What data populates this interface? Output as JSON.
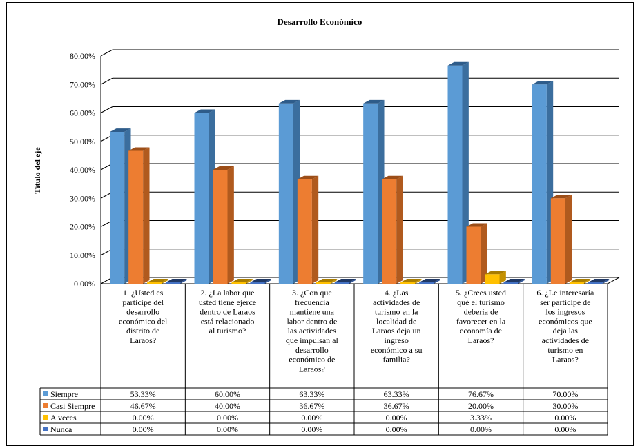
{
  "chart_data": {
    "type": "bar",
    "title": "Desarrollo Económico",
    "ylabel": "Título del eje",
    "ylim": [
      0,
      80
    ],
    "yticks": [
      "0.00%",
      "10.00%",
      "20.00%",
      "30.00%",
      "40.00%",
      "50.00%",
      "60.00%",
      "70.00%",
      "80.00%"
    ],
    "grid": true,
    "three_d": true,
    "legend_placement": "data-table",
    "categories": [
      [
        "1. ¿Usted es",
        "participe del",
        "desarrollo",
        "económico del",
        "distrito de",
        "Laraos?"
      ],
      [
        "2. ¿La labor que",
        "usted tiene ejerce",
        "dentro de Laraos",
        "está relacionado",
        "al turismo?"
      ],
      [
        "3. ¿Con que",
        "frecuencia",
        "mantiene una",
        "labor dentro de",
        "las actividades",
        "que impulsan al",
        "desarrollo",
        "económico de",
        "Laraos?"
      ],
      [
        "4. ¿Las",
        "actividades de",
        "turismo en la",
        "localidad de",
        "Laraos deja un",
        "ingreso",
        "económico a su",
        "familia?"
      ],
      [
        "5. ¿Crees usted",
        "qué el turismo",
        "debería de",
        "favorecer en la",
        "economía de",
        "Laraos?"
      ],
      [
        "6. ¿Le interesaría",
        "ser participe de",
        "los ingresos",
        "económicos que",
        "deja las",
        "actividades de",
        "turismo en",
        "Laraos?"
      ]
    ],
    "series": [
      {
        "name": "Siempre",
        "color": "#5B9BD5",
        "side": "#3B6E9E",
        "top": "#2E5C8A",
        "values": [
          53.33,
          60.0,
          63.33,
          63.33,
          76.67,
          70.0
        ],
        "labels": [
          "53.33%",
          "60.00%",
          "63.33%",
          "63.33%",
          "76.67%",
          "70.00%"
        ]
      },
      {
        "name": "Casi Siempre",
        "color": "#ED7D31",
        "side": "#B05A1E",
        "top": "#9C4E18",
        "values": [
          46.67,
          40.0,
          36.67,
          36.67,
          20.0,
          30.0
        ],
        "labels": [
          "46.67%",
          "40.00%",
          "36.67%",
          "36.67%",
          "20.00%",
          "30.00%"
        ]
      },
      {
        "name": "A veces",
        "color": "#FFC000",
        "side": "#C49000",
        "top": "#A87C00",
        "values": [
          0.0,
          0.0,
          0.0,
          0.0,
          3.33,
          0.0
        ],
        "labels": [
          "0.00%",
          "0.00%",
          "0.00%",
          "0.00%",
          "3.33%",
          "0.00%"
        ]
      },
      {
        "name": "Nunca",
        "color": "#4472C4",
        "side": "#2F5597",
        "top": "#203864",
        "values": [
          0.0,
          0.0,
          0.0,
          0.0,
          0.0,
          0.0
        ],
        "labels": [
          "0.00%",
          "0.00%",
          "0.00%",
          "0.00%",
          "0.00%",
          "0.00%"
        ]
      }
    ]
  }
}
